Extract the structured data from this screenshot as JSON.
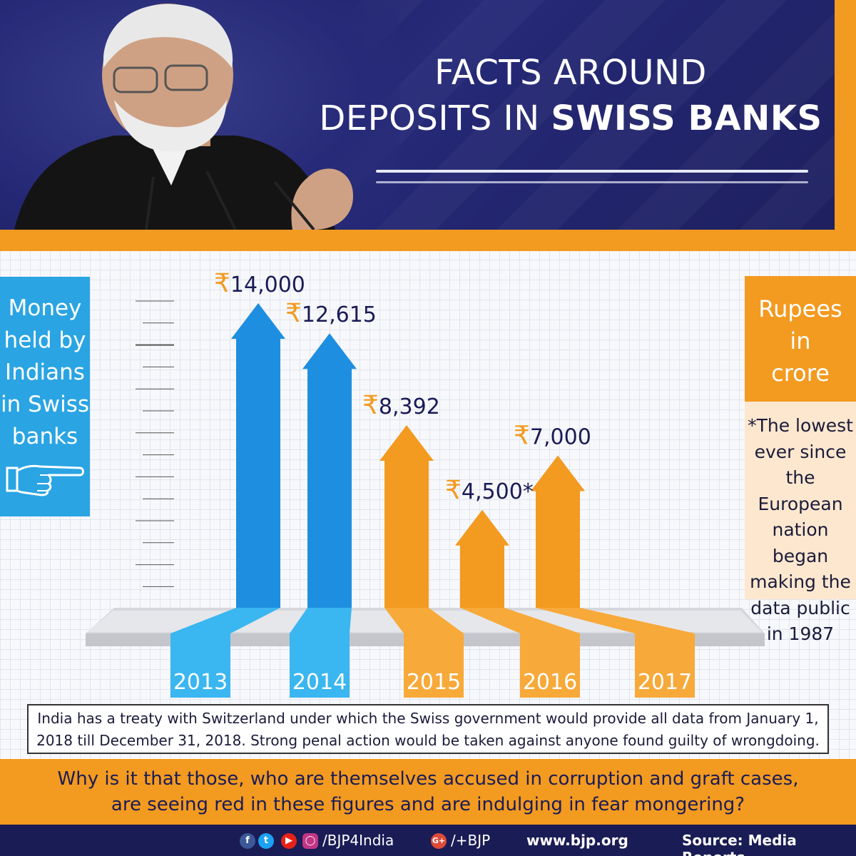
{
  "header": {
    "title_line1": "FACTS AROUND",
    "title_line2_normal": "DEPOSITS IN",
    "title_line2_bold": "SWISS BANKS"
  },
  "left_panel": {
    "lines": [
      "Money",
      "held by",
      "Indians",
      "in Swiss",
      "banks"
    ],
    "icon": "pointing-hand-icon"
  },
  "unit_box": {
    "lines": [
      "Rupees",
      "in",
      "crore"
    ]
  },
  "note": {
    "lines": [
      "*The lowest",
      "ever since",
      "the European",
      "nation began",
      "making the",
      "data public",
      "in 1987"
    ]
  },
  "chart_data": {
    "type": "bar",
    "categories": [
      "2013",
      "2014",
      "2015",
      "2016",
      "2017"
    ],
    "values": [
      14000,
      12615,
      8392,
      4500,
      7000
    ],
    "labels": [
      "₹14,000",
      "₹12,615",
      "₹8,392",
      "₹4,500*",
      "₹7,000"
    ],
    "colors": [
      "#1e8fe0",
      "#1e8fe0",
      "#f39a20",
      "#f39a20",
      "#f39a20"
    ],
    "ylim": [
      0,
      14000
    ]
  },
  "info_text": {
    "line1": "India has a treaty with Switzerland under which the Swiss government would provide all data from January 1,",
    "line2": "2018 till December 31, 2018. Strong penal action would be taken against anyone found guilty of wrongdoing."
  },
  "question": {
    "line1": "Why is it that those, who are themselves accused in corruption and graft cases,",
    "line2": "are seeing red in these figures and are indulging in fear mongering?"
  },
  "footer": {
    "handle": "/BJP4India",
    "gplus": "/+BJP",
    "website": "www.bjp.org",
    "source": "Source: Media Reports",
    "icons": [
      "facebook-icon",
      "twitter-icon",
      "youtube-icon",
      "instagram-icon",
      "google-plus-icon"
    ]
  }
}
